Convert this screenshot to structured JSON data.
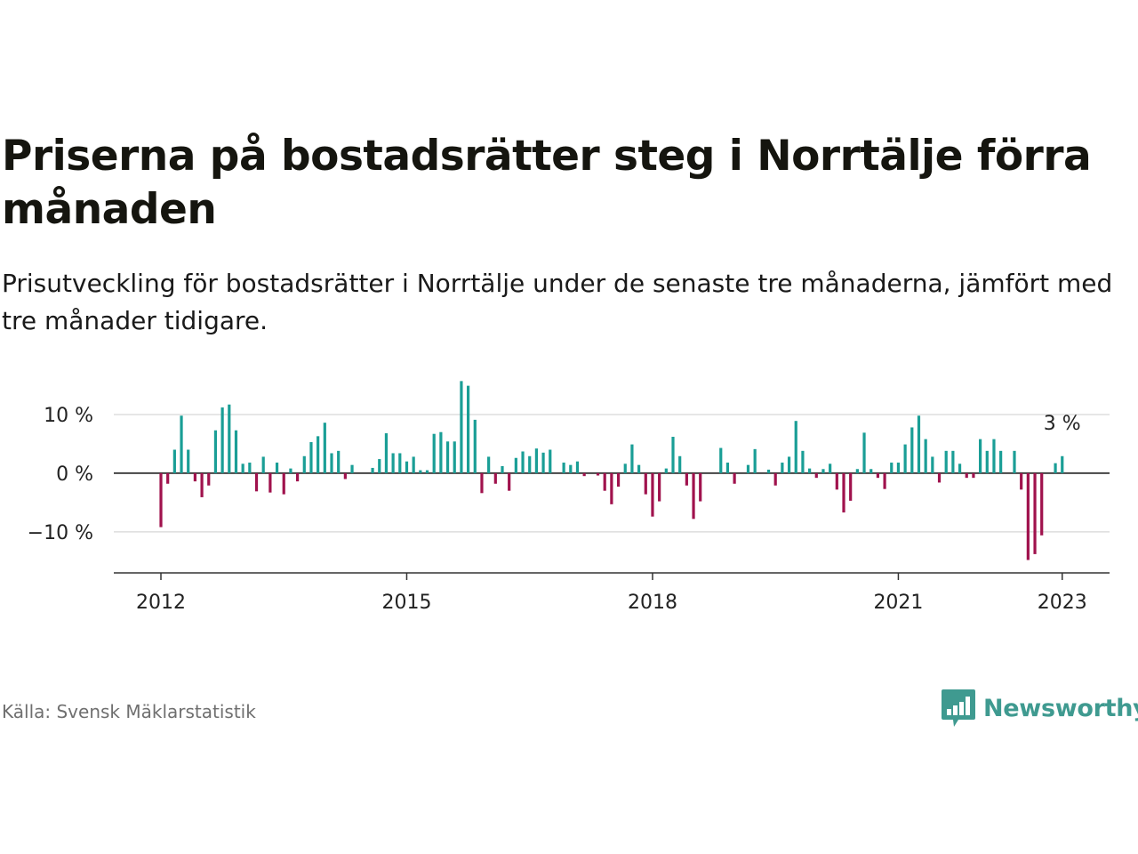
{
  "title": "Priserna på bostadsrätter steg i Norrtälje förra månaden",
  "subtitle": "Prisutveckling för bostadsrätter i Norrtälje under de senaste tre månaderna, jämfört med tre månader tidigare.",
  "source": "Källa: Svensk Mäklarstatistik",
  "brand": "Newsworthy",
  "colors": {
    "positive": "#1a9e96",
    "negative": "#a0124d",
    "brand": "#3f9a90",
    "grid": "#dddddd",
    "axis": "#333333"
  },
  "chart_data": {
    "type": "bar",
    "x_start": "2012-01",
    "ylim": [
      -17,
      20
    ],
    "yticks": [
      {
        "value": 10,
        "label": "10 %"
      },
      {
        "value": 0,
        "label": "0 %"
      },
      {
        "value": -10,
        "label": "−10 %"
      }
    ],
    "xticks": [
      {
        "value": "2012-01",
        "label": "2012"
      },
      {
        "value": "2015-01",
        "label": "2015"
      },
      {
        "value": "2018-01",
        "label": "2018"
      },
      {
        "value": "2021-01",
        "label": "2021"
      },
      {
        "value": "2023-01",
        "label": "2023"
      }
    ],
    "annotation": {
      "value": "2023-01",
      "label": "3 %"
    },
    "values": [
      -9.2,
      -1.8,
      4.0,
      9.8,
      4.0,
      -1.4,
      -4.1,
      -2.1,
      7.3,
      11.2,
      11.7,
      7.3,
      1.6,
      1.8,
      -3.1,
      2.8,
      -3.3,
      1.8,
      -3.6,
      0.8,
      -1.4,
      2.9,
      5.3,
      6.3,
      8.6,
      3.4,
      3.8,
      -1.0,
      1.4,
      null,
      null,
      0.9,
      2.4,
      6.8,
      3.4,
      3.4,
      2.0,
      2.8,
      0.5,
      0.5,
      6.7,
      7.0,
      5.4,
      5.4,
      15.7,
      14.9,
      9.1,
      -3.4,
      2.8,
      -1.8,
      1.2,
      -3.0,
      2.6,
      3.7,
      2.9,
      4.2,
      3.5,
      4.0,
      null,
      1.8,
      1.4,
      2.0,
      -0.5,
      null,
      -0.4,
      -3.0,
      -5.3,
      -2.3,
      1.6,
      4.9,
      1.4,
      -3.6,
      -7.4,
      -4.8,
      0.8,
      6.2,
      2.9,
      -2.1,
      -7.8,
      -4.8,
      null,
      null,
      4.3,
      1.8,
      -1.8,
      null,
      1.4,
      4.1,
      null,
      0.6,
      -2.1,
      1.8,
      2.8,
      8.9,
      3.8,
      0.8,
      -0.8,
      0.7,
      1.6,
      -2.8,
      -6.7,
      -4.7,
      0.7,
      6.9,
      0.7,
      -0.8,
      -2.7,
      1.8,
      1.8,
      4.9,
      7.8,
      9.8,
      5.8,
      2.8,
      -1.6,
      3.8,
      3.8,
      1.6,
      -0.8,
      -0.8,
      5.8,
      3.8,
      5.8,
      3.8,
      null,
      3.8,
      -2.8,
      -14.8,
      -13.8,
      -10.6,
      null,
      1.7,
      2.9
    ]
  }
}
